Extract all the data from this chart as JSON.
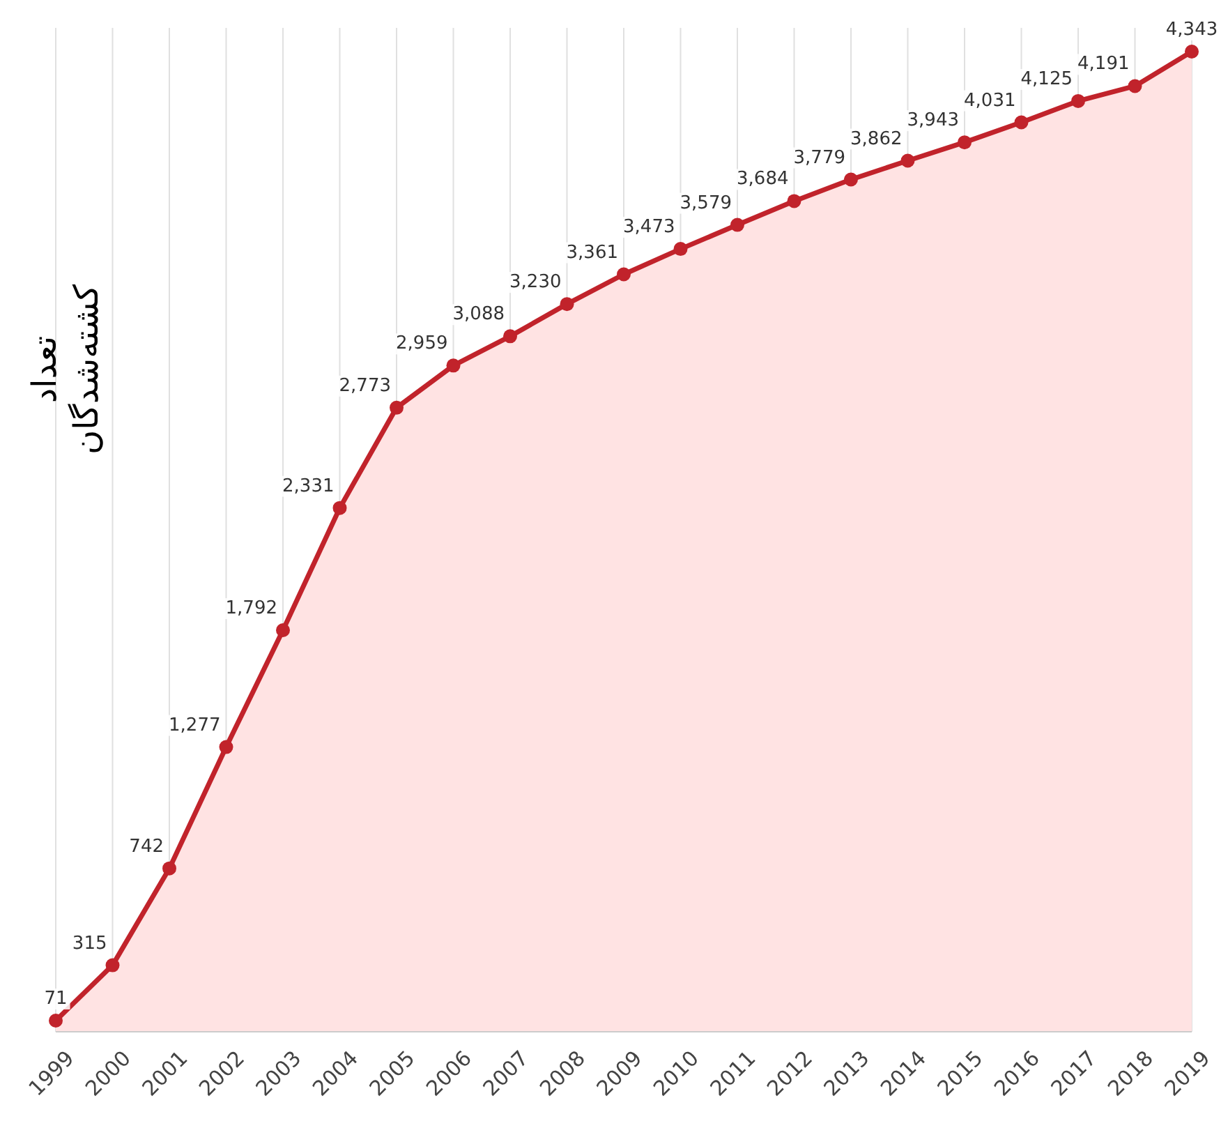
{
  "chart_data": {
    "type": "area",
    "ylabel": "تعداد کشته‌شدگان",
    "categories": [
      "1999",
      "2000",
      "2001",
      "2002",
      "2003",
      "2004",
      "2005",
      "2006",
      "2007",
      "2008",
      "2009",
      "2010",
      "2011",
      "2012",
      "2013",
      "2014",
      "2015",
      "2016",
      "2017",
      "2018",
      "2019"
    ],
    "values": [
      71,
      315,
      742,
      1277,
      1792,
      2331,
      2773,
      2959,
      3088,
      3230,
      3361,
      3473,
      3579,
      3684,
      3779,
      3862,
      3943,
      4031,
      4125,
      4191,
      4343
    ],
    "value_labels": [
      "71",
      "315",
      "742",
      "1,277",
      "1,792",
      "2,331",
      "2,773",
      "2,959",
      "3,088",
      "3,230",
      "3,361",
      "3,473",
      "3,579",
      "3,684",
      "3,779",
      "3,862",
      "3,943",
      "4,031",
      "4,125",
      "4,191",
      "4,343"
    ],
    "color": "#c1232b",
    "grid": "x",
    "marker": "circle"
  }
}
